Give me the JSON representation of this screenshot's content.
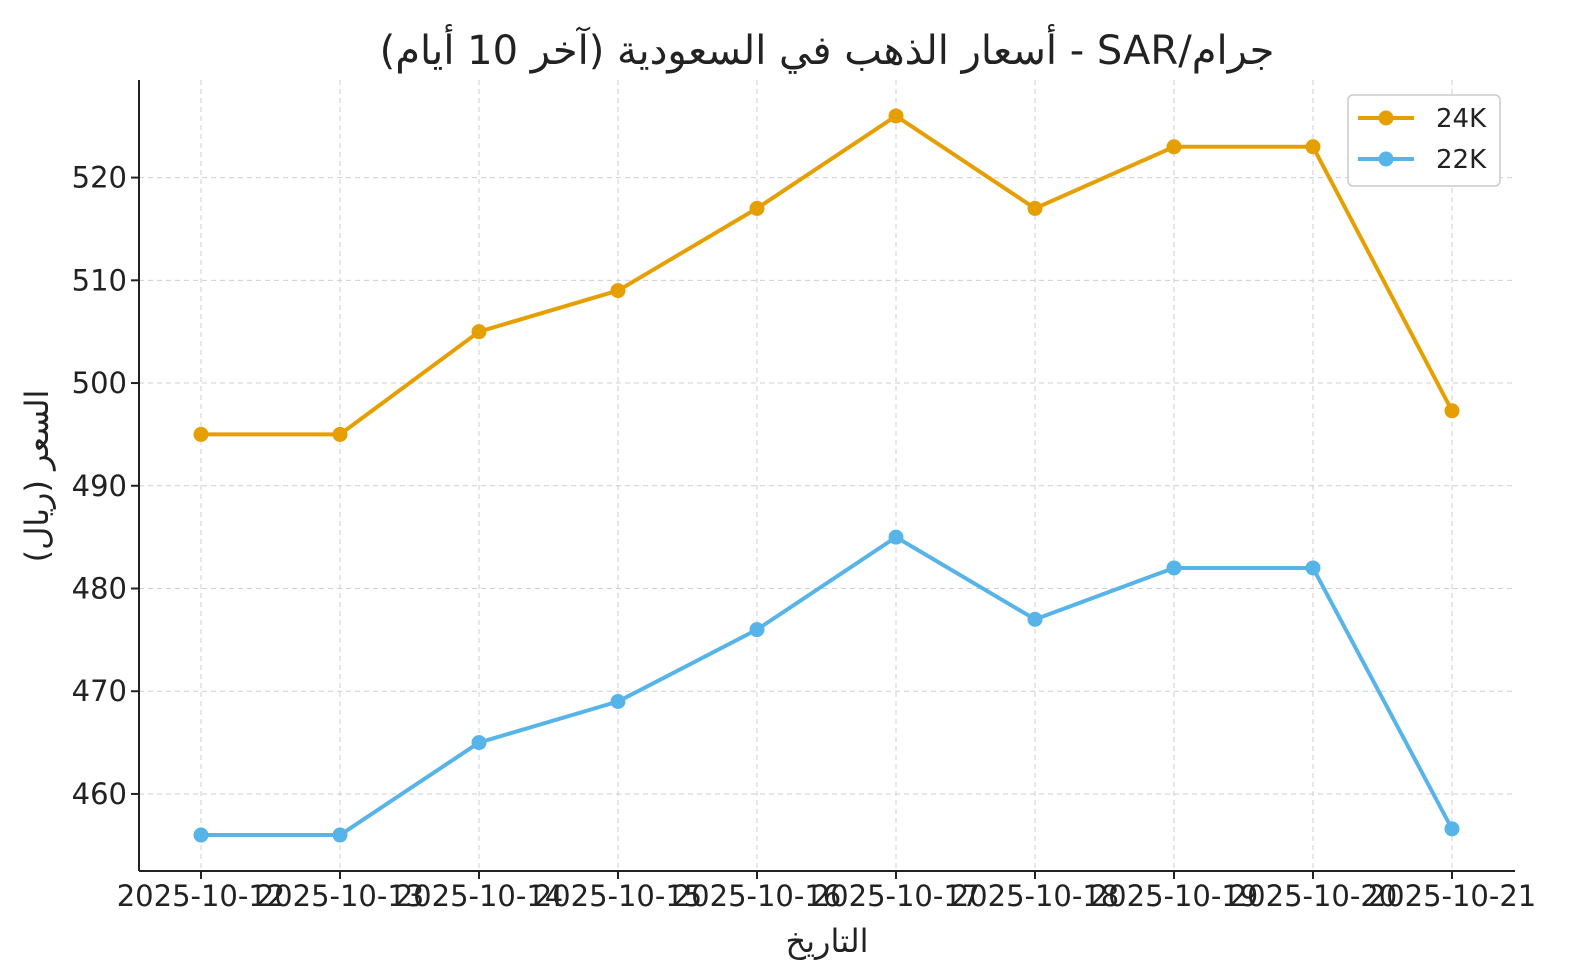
{
  "chart_data": {
    "type": "line",
    "title": "أسعار الذهب في السعودية (آخر 10 أيام) - SAR/جرام",
    "xlabel": "التاريخ",
    "ylabel": "السعر (ريال)",
    "categories": [
      "2025-10-12",
      "2025-10-13",
      "2025-10-14",
      "2025-10-15",
      "2025-10-16",
      "2025-10-17",
      "2025-10-18",
      "2025-10-19",
      "2025-10-20",
      "2025-10-21"
    ],
    "yticks": [
      460,
      470,
      480,
      490,
      500,
      510,
      520
    ],
    "ylim": [
      452.5,
      529.5
    ],
    "grid": true,
    "legend_position": "top-right",
    "series": [
      {
        "name": "24K",
        "color": "#E69F00",
        "values": [
          495,
          495,
          505,
          509,
          517,
          526,
          517,
          523,
          523,
          497.3
        ]
      },
      {
        "name": "22K",
        "color": "#56B4E9",
        "values": [
          456,
          456,
          465,
          469,
          476,
          485,
          477,
          482,
          482,
          456.6
        ]
      }
    ]
  }
}
